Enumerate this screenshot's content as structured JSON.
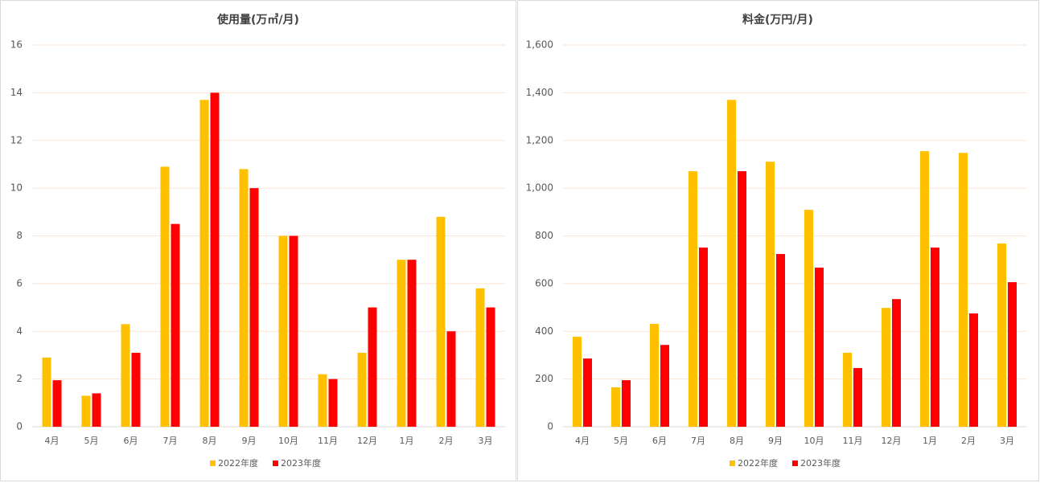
{
  "chart_data": [
    {
      "type": "bar",
      "title": "使用量(万㎥/月)",
      "categories": [
        "4月",
        "5月",
        "6月",
        "7月",
        "8月",
        "9月",
        "10月",
        "11月",
        "12月",
        "1月",
        "2月",
        "3月"
      ],
      "series": [
        {
          "name": "2022年度",
          "color": "#ffc000",
          "values": [
            2.9,
            1.3,
            4.3,
            10.9,
            13.7,
            10.8,
            8.0,
            2.2,
            3.1,
            7.0,
            8.8,
            5.8
          ]
        },
        {
          "name": "2023年度",
          "color": "#ff0000",
          "values": [
            1.95,
            1.4,
            3.1,
            8.5,
            14.0,
            10.0,
            8.0,
            2.0,
            5.0,
            7.0,
            4.0,
            5.0
          ]
        }
      ],
      "ylim": [
        0,
        16
      ],
      "yticks": [
        0,
        2,
        4,
        6,
        8,
        10,
        12,
        14,
        16
      ],
      "grid": true,
      "legend": "bottom"
    },
    {
      "type": "bar",
      "title": "料金(万円/月)",
      "categories": [
        "4月",
        "5月",
        "6月",
        "7月",
        "8月",
        "9月",
        "10月",
        "11月",
        "12月",
        "1月",
        "2月",
        "3月"
      ],
      "series": [
        {
          "name": "2022年度",
          "color": "#ffc000",
          "values": [
            377,
            165,
            431,
            1071,
            1370,
            1111,
            909,
            310,
            498,
            1155,
            1148,
            768
          ]
        },
        {
          "name": "2023年度",
          "color": "#ff0000",
          "values": [
            286,
            195,
            343,
            751,
            1071,
            724,
            667,
            246,
            535,
            751,
            475,
            606
          ]
        }
      ],
      "ylim": [
        0,
        1600
      ],
      "yticks": [
        0,
        200,
        400,
        600,
        800,
        {
          "value": 1000,
          "label": "1,000"
        },
        {
          "value": 1200,
          "label": "1,200"
        },
        {
          "value": 1400,
          "label": "1,400"
        },
        {
          "value": 1600,
          "label": "1,600"
        }
      ],
      "grid": true,
      "legend": "bottom"
    }
  ]
}
